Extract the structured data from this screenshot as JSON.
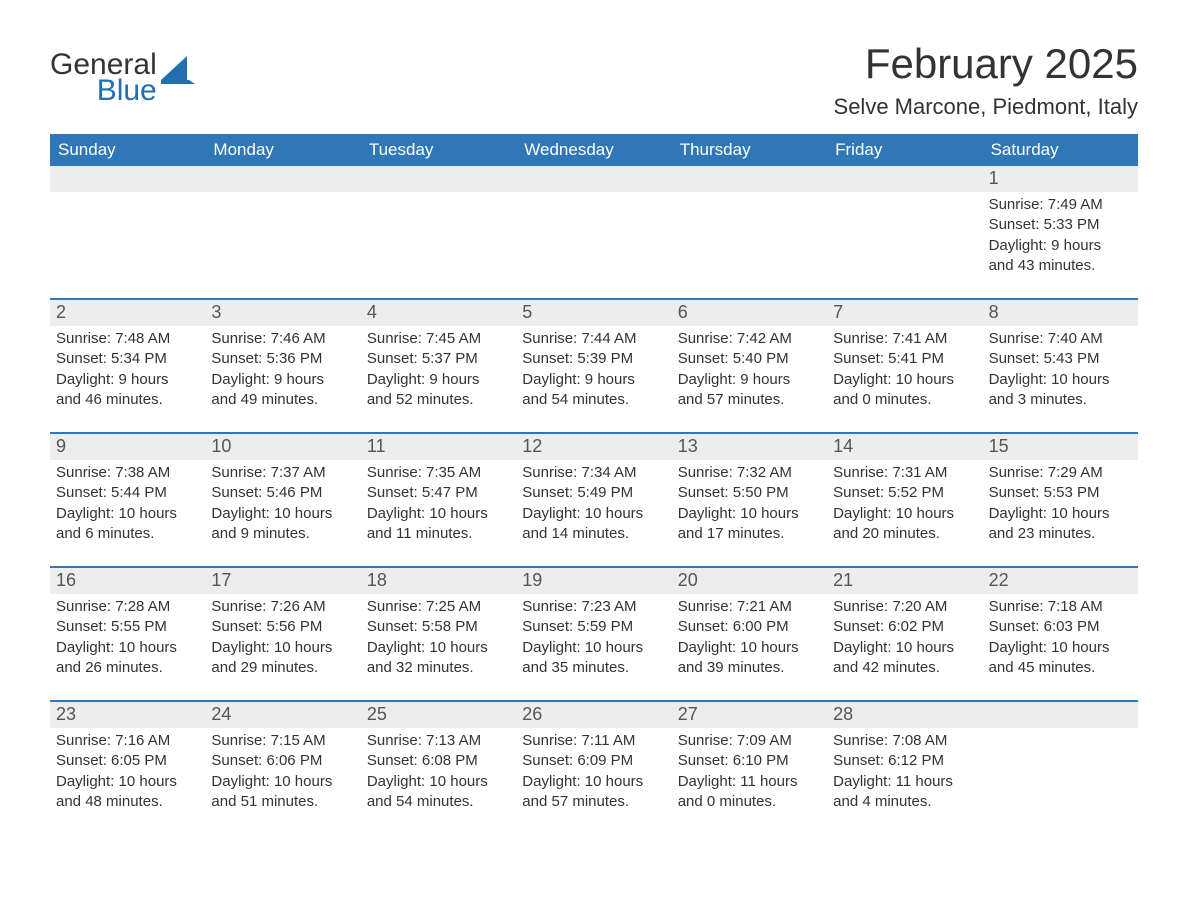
{
  "logo": {
    "word1": "General",
    "word2": "Blue",
    "accent_color": "#1f6fb2"
  },
  "title": "February 2025",
  "location": "Selve Marcone, Piedmont, Italy",
  "colors": {
    "header_bg": "#2f77b6",
    "header_text": "#ffffff",
    "daynum_bg": "#ededed",
    "rule": "#2f77b6",
    "body_text": "#333333"
  },
  "day_headers": [
    "Sunday",
    "Monday",
    "Tuesday",
    "Wednesday",
    "Thursday",
    "Friday",
    "Saturday"
  ],
  "weeks": [
    [
      {
        "day": "",
        "sunrise": "",
        "sunset": "",
        "daylight1": "",
        "daylight2": ""
      },
      {
        "day": "",
        "sunrise": "",
        "sunset": "",
        "daylight1": "",
        "daylight2": ""
      },
      {
        "day": "",
        "sunrise": "",
        "sunset": "",
        "daylight1": "",
        "daylight2": ""
      },
      {
        "day": "",
        "sunrise": "",
        "sunset": "",
        "daylight1": "",
        "daylight2": ""
      },
      {
        "day": "",
        "sunrise": "",
        "sunset": "",
        "daylight1": "",
        "daylight2": ""
      },
      {
        "day": "",
        "sunrise": "",
        "sunset": "",
        "daylight1": "",
        "daylight2": ""
      },
      {
        "day": "1",
        "sunrise": "Sunrise: 7:49 AM",
        "sunset": "Sunset: 5:33 PM",
        "daylight1": "Daylight: 9 hours",
        "daylight2": "and 43 minutes."
      }
    ],
    [
      {
        "day": "2",
        "sunrise": "Sunrise: 7:48 AM",
        "sunset": "Sunset: 5:34 PM",
        "daylight1": "Daylight: 9 hours",
        "daylight2": "and 46 minutes."
      },
      {
        "day": "3",
        "sunrise": "Sunrise: 7:46 AM",
        "sunset": "Sunset: 5:36 PM",
        "daylight1": "Daylight: 9 hours",
        "daylight2": "and 49 minutes."
      },
      {
        "day": "4",
        "sunrise": "Sunrise: 7:45 AM",
        "sunset": "Sunset: 5:37 PM",
        "daylight1": "Daylight: 9 hours",
        "daylight2": "and 52 minutes."
      },
      {
        "day": "5",
        "sunrise": "Sunrise: 7:44 AM",
        "sunset": "Sunset: 5:39 PM",
        "daylight1": "Daylight: 9 hours",
        "daylight2": "and 54 minutes."
      },
      {
        "day": "6",
        "sunrise": "Sunrise: 7:42 AM",
        "sunset": "Sunset: 5:40 PM",
        "daylight1": "Daylight: 9 hours",
        "daylight2": "and 57 minutes."
      },
      {
        "day": "7",
        "sunrise": "Sunrise: 7:41 AM",
        "sunset": "Sunset: 5:41 PM",
        "daylight1": "Daylight: 10 hours",
        "daylight2": "and 0 minutes."
      },
      {
        "day": "8",
        "sunrise": "Sunrise: 7:40 AM",
        "sunset": "Sunset: 5:43 PM",
        "daylight1": "Daylight: 10 hours",
        "daylight2": "and 3 minutes."
      }
    ],
    [
      {
        "day": "9",
        "sunrise": "Sunrise: 7:38 AM",
        "sunset": "Sunset: 5:44 PM",
        "daylight1": "Daylight: 10 hours",
        "daylight2": "and 6 minutes."
      },
      {
        "day": "10",
        "sunrise": "Sunrise: 7:37 AM",
        "sunset": "Sunset: 5:46 PM",
        "daylight1": "Daylight: 10 hours",
        "daylight2": "and 9 minutes."
      },
      {
        "day": "11",
        "sunrise": "Sunrise: 7:35 AM",
        "sunset": "Sunset: 5:47 PM",
        "daylight1": "Daylight: 10 hours",
        "daylight2": "and 11 minutes."
      },
      {
        "day": "12",
        "sunrise": "Sunrise: 7:34 AM",
        "sunset": "Sunset: 5:49 PM",
        "daylight1": "Daylight: 10 hours",
        "daylight2": "and 14 minutes."
      },
      {
        "day": "13",
        "sunrise": "Sunrise: 7:32 AM",
        "sunset": "Sunset: 5:50 PM",
        "daylight1": "Daylight: 10 hours",
        "daylight2": "and 17 minutes."
      },
      {
        "day": "14",
        "sunrise": "Sunrise: 7:31 AM",
        "sunset": "Sunset: 5:52 PM",
        "daylight1": "Daylight: 10 hours",
        "daylight2": "and 20 minutes."
      },
      {
        "day": "15",
        "sunrise": "Sunrise: 7:29 AM",
        "sunset": "Sunset: 5:53 PM",
        "daylight1": "Daylight: 10 hours",
        "daylight2": "and 23 minutes."
      }
    ],
    [
      {
        "day": "16",
        "sunrise": "Sunrise: 7:28 AM",
        "sunset": "Sunset: 5:55 PM",
        "daylight1": "Daylight: 10 hours",
        "daylight2": "and 26 minutes."
      },
      {
        "day": "17",
        "sunrise": "Sunrise: 7:26 AM",
        "sunset": "Sunset: 5:56 PM",
        "daylight1": "Daylight: 10 hours",
        "daylight2": "and 29 minutes."
      },
      {
        "day": "18",
        "sunrise": "Sunrise: 7:25 AM",
        "sunset": "Sunset: 5:58 PM",
        "daylight1": "Daylight: 10 hours",
        "daylight2": "and 32 minutes."
      },
      {
        "day": "19",
        "sunrise": "Sunrise: 7:23 AM",
        "sunset": "Sunset: 5:59 PM",
        "daylight1": "Daylight: 10 hours",
        "daylight2": "and 35 minutes."
      },
      {
        "day": "20",
        "sunrise": "Sunrise: 7:21 AM",
        "sunset": "Sunset: 6:00 PM",
        "daylight1": "Daylight: 10 hours",
        "daylight2": "and 39 minutes."
      },
      {
        "day": "21",
        "sunrise": "Sunrise: 7:20 AM",
        "sunset": "Sunset: 6:02 PM",
        "daylight1": "Daylight: 10 hours",
        "daylight2": "and 42 minutes."
      },
      {
        "day": "22",
        "sunrise": "Sunrise: 7:18 AM",
        "sunset": "Sunset: 6:03 PM",
        "daylight1": "Daylight: 10 hours",
        "daylight2": "and 45 minutes."
      }
    ],
    [
      {
        "day": "23",
        "sunrise": "Sunrise: 7:16 AM",
        "sunset": "Sunset: 6:05 PM",
        "daylight1": "Daylight: 10 hours",
        "daylight2": "and 48 minutes."
      },
      {
        "day": "24",
        "sunrise": "Sunrise: 7:15 AM",
        "sunset": "Sunset: 6:06 PM",
        "daylight1": "Daylight: 10 hours",
        "daylight2": "and 51 minutes."
      },
      {
        "day": "25",
        "sunrise": "Sunrise: 7:13 AM",
        "sunset": "Sunset: 6:08 PM",
        "daylight1": "Daylight: 10 hours",
        "daylight2": "and 54 minutes."
      },
      {
        "day": "26",
        "sunrise": "Sunrise: 7:11 AM",
        "sunset": "Sunset: 6:09 PM",
        "daylight1": "Daylight: 10 hours",
        "daylight2": "and 57 minutes."
      },
      {
        "day": "27",
        "sunrise": "Sunrise: 7:09 AM",
        "sunset": "Sunset: 6:10 PM",
        "daylight1": "Daylight: 11 hours",
        "daylight2": "and 0 minutes."
      },
      {
        "day": "28",
        "sunrise": "Sunrise: 7:08 AM",
        "sunset": "Sunset: 6:12 PM",
        "daylight1": "Daylight: 11 hours",
        "daylight2": "and 4 minutes."
      },
      {
        "day": "",
        "sunrise": "",
        "sunset": "",
        "daylight1": "",
        "daylight2": ""
      }
    ]
  ]
}
